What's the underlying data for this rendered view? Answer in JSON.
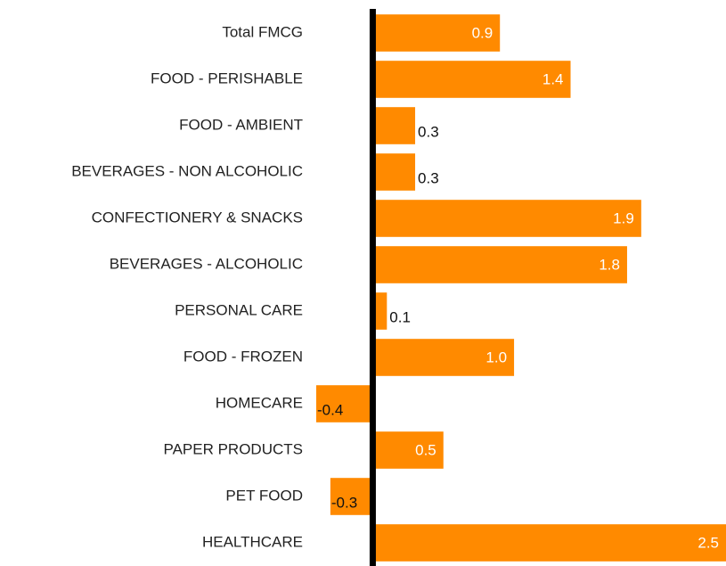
{
  "chart_data": {
    "type": "barh",
    "categories": [
      "Total FMCG",
      "FOOD - PERISHABLE",
      "FOOD - AMBIENT",
      "BEVERAGES - NON ALCOHOLIC",
      "CONFECTIONERY & SNACKS",
      "BEVERAGES - ALCOHOLIC",
      "PERSONAL CARE",
      "FOOD - FROZEN",
      "HOMECARE",
      "PAPER PRODUCTS",
      "PET FOOD",
      "HEALTHCARE"
    ],
    "values": [
      0.9,
      1.4,
      0.3,
      0.3,
      1.9,
      1.8,
      0.1,
      1.0,
      -0.4,
      0.5,
      -0.3,
      2.5
    ],
    "value_labels": [
      "0.9",
      "1.4",
      "0.3",
      "0.3",
      "1.9",
      "1.8",
      "0.1",
      "1.0",
      "-0.4",
      "0.5",
      "-0.3",
      "2.5"
    ],
    "color": "#ff8a00",
    "xlim": [
      -0.4,
      2.5
    ]
  }
}
